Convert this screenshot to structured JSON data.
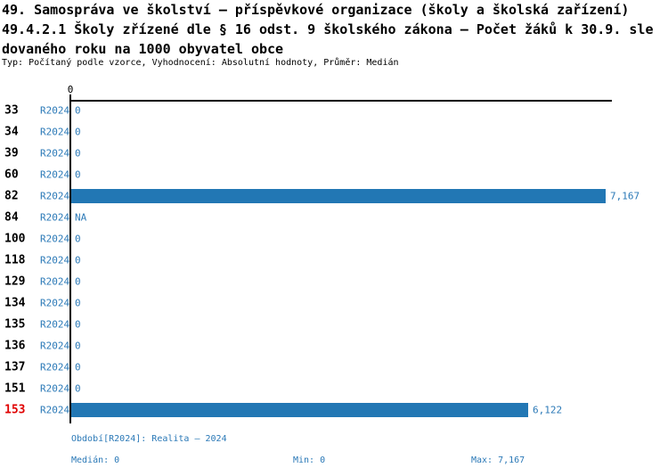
{
  "title": {
    "line1": "49. Samospráva ve školství – příspěvkové organizace (školy a školská zařízení)",
    "line2": "49.4.2.1 Školy zřízené dle § 16 odst. 9 školského zákona – Počet žáků k 30.9. sle",
    "line3": "dovaného roku na 1000 obyvatel obce",
    "subtitle": "Typ: Počítaný podle vzorce, Vyhodnocení: Absolutní hodnoty, Průměr: Medián"
  },
  "axis": {
    "zero_label": "0",
    "max_value": 7167
  },
  "rows": [
    {
      "id": "33",
      "period": "R2024",
      "value": 0,
      "display": "0",
      "highlight": false
    },
    {
      "id": "34",
      "period": "R2024",
      "value": 0,
      "display": "0",
      "highlight": false
    },
    {
      "id": "39",
      "period": "R2024",
      "value": 0,
      "display": "0",
      "highlight": false
    },
    {
      "id": "60",
      "period": "R2024",
      "value": 0,
      "display": "0",
      "highlight": false
    },
    {
      "id": "82",
      "period": "R2024",
      "value": 7167,
      "display": "7,167",
      "highlight": false
    },
    {
      "id": "84",
      "period": "R2024",
      "value": null,
      "display": "NA",
      "highlight": false
    },
    {
      "id": "100",
      "period": "R2024",
      "value": 0,
      "display": "0",
      "highlight": false
    },
    {
      "id": "118",
      "period": "R2024",
      "value": 0,
      "display": "0",
      "highlight": false
    },
    {
      "id": "129",
      "period": "R2024",
      "value": 0,
      "display": "0",
      "highlight": false
    },
    {
      "id": "134",
      "period": "R2024",
      "value": 0,
      "display": "0",
      "highlight": false
    },
    {
      "id": "135",
      "period": "R2024",
      "value": 0,
      "display": "0",
      "highlight": false
    },
    {
      "id": "136",
      "period": "R2024",
      "value": 0,
      "display": "0",
      "highlight": false
    },
    {
      "id": "137",
      "period": "R2024",
      "value": 0,
      "display": "0",
      "highlight": false
    },
    {
      "id": "151",
      "period": "R2024",
      "value": 0,
      "display": "0",
      "highlight": false
    },
    {
      "id": "153",
      "period": "R2024",
      "value": 6122,
      "display": "6,122",
      "highlight": true
    }
  ],
  "footer": {
    "period_line": "Období[R2024]: Realita – 2024",
    "median": "Medián: 0",
    "min": "Min: 0",
    "max": "Max: 7,167"
  },
  "colors": {
    "bar": "#2277b4",
    "blue_text": "#2b79b7",
    "red_text": "#e00000",
    "axis": "#000000"
  },
  "chart_data": {
    "type": "bar",
    "orientation": "horizontal",
    "title": "49.4.2.1 Školy zřízené dle § 16 odst. 9 školského zákona – Počet žáků k 30.9. sledovaného roku na 1000 obyvatel obce",
    "subtitle": "Typ: Počítaný podle vzorce, Vyhodnocení: Absolutní hodnoty, Průměr: Medián",
    "categories": [
      "33",
      "34",
      "39",
      "60",
      "82",
      "84",
      "100",
      "118",
      "129",
      "134",
      "135",
      "136",
      "137",
      "151",
      "153"
    ],
    "series": [
      {
        "name": "R2024",
        "values": [
          0,
          0,
          0,
          0,
          7167,
          null,
          0,
          0,
          0,
          0,
          0,
          0,
          0,
          0,
          6122
        ]
      }
    ],
    "value_labels": [
      "0",
      "0",
      "0",
      "0",
      "7,167",
      "NA",
      "0",
      "0",
      "0",
      "0",
      "0",
      "0",
      "0",
      "0",
      "6,122"
    ],
    "xlabel": "",
    "ylabel": "",
    "xlim": [
      0,
      7167
    ],
    "grid": false,
    "legend_position": "none",
    "stats": {
      "median": 0,
      "min": 0,
      "max": 7167,
      "max_label": "7,167"
    }
  }
}
